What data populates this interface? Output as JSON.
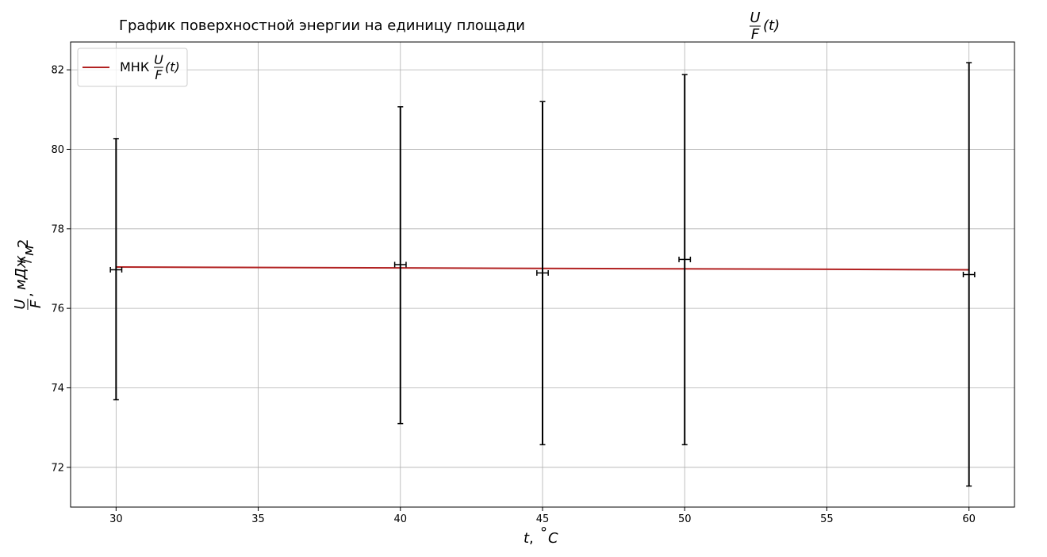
{
  "chart_data": {
    "type": "scatter",
    "title": "График поверхностной энергии на единицу площади",
    "title_math": {
      "num": "U",
      "den": "F",
      "arg": "(t)"
    },
    "xlabel": "t, °C",
    "xlabel_math": {
      "var": "t",
      "sep": ", ",
      "deg": "°",
      "unit": "C"
    },
    "ylabel_math": {
      "num": "U",
      "den": "F",
      "sep": ",",
      "unit_num": "мДж",
      "unit_den": "м",
      "unit_pow": "2"
    },
    "xlim": [
      28.4,
      61.6
    ],
    "ylim": [
      71.0,
      82.7
    ],
    "xticks": [
      30,
      35,
      40,
      45,
      50,
      55,
      60
    ],
    "yticks": [
      72,
      74,
      76,
      78,
      80,
      82
    ],
    "grid": true,
    "legend": {
      "placement": "top-left",
      "label": "МНК",
      "label_math": {
        "num": "U",
        "den": "F",
        "arg": "(t)"
      }
    },
    "points": [
      {
        "x": 30,
        "y": 76.97,
        "yerr_low": 73.7,
        "yerr_high": 80.27,
        "xerr": 0.2
      },
      {
        "x": 40,
        "y": 77.1,
        "yerr_low": 73.1,
        "yerr_high": 81.07,
        "xerr": 0.2
      },
      {
        "x": 45,
        "y": 76.89,
        "yerr_low": 72.57,
        "yerr_high": 81.2,
        "xerr": 0.2
      },
      {
        "x": 50,
        "y": 77.23,
        "yerr_low": 72.57,
        "yerr_high": 81.88,
        "xerr": 0.2
      },
      {
        "x": 60,
        "y": 76.85,
        "yerr_low": 71.53,
        "yerr_high": 82.18,
        "xerr": 0.2
      }
    ],
    "fit_line": {
      "name": "МНК",
      "x": [
        30,
        60
      ],
      "y": [
        77.04,
        76.97
      ],
      "color": "#b22222"
    },
    "colors": {
      "errorbar": "#000000",
      "fit": "#b22222",
      "grid": "#b0b0b0"
    }
  }
}
